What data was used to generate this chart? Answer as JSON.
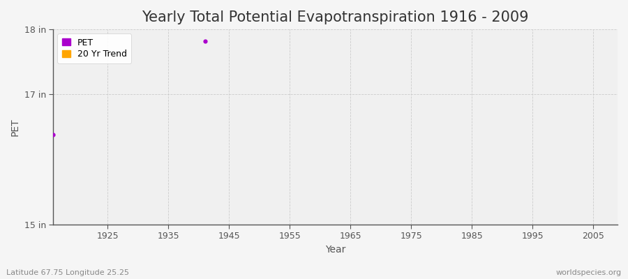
{
  "title": "Yearly Total Potential Evapotranspiration 1916 - 2009",
  "xlabel": "Year",
  "ylabel": "PET",
  "ylim": [
    15,
    18
  ],
  "xlim": [
    1916,
    2009
  ],
  "ytick_positions": [
    15,
    17,
    18
  ],
  "ytick_labels": [
    "15 in",
    "17 in",
    "18 in"
  ],
  "xticks": [
    1925,
    1935,
    1945,
    1955,
    1965,
    1975,
    1985,
    1995,
    2005
  ],
  "pet_color": "#aa00cc",
  "trend_color": "#ffa500",
  "figure_bg_color": "#f5f5f5",
  "plot_bg_color": "#f0f0f0",
  "grid_color": "#cccccc",
  "data_points_x": [
    1916,
    1941
  ],
  "data_points_y": [
    16.38,
    17.82
  ],
  "subtitle_left": "Latitude 67.75 Longitude 25.25",
  "subtitle_right": "worldspecies.org",
  "title_fontsize": 15,
  "tick_fontsize": 9,
  "label_fontsize": 10
}
